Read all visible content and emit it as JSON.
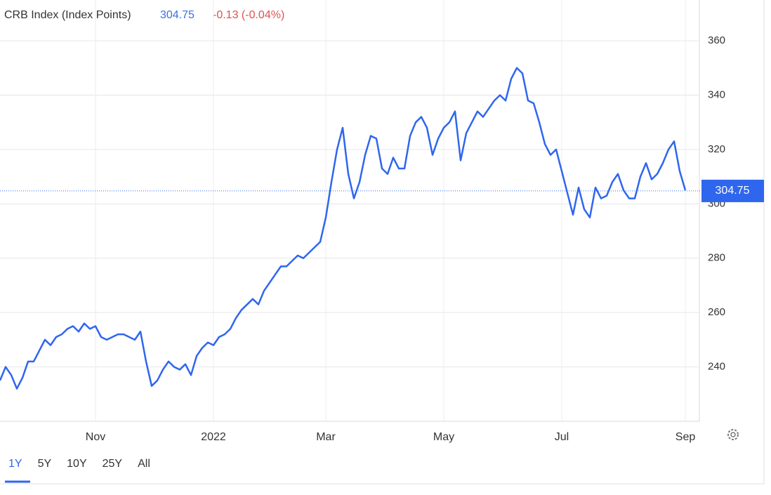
{
  "chart_data": {
    "type": "line",
    "title": "CRB Index (Index Points)",
    "last_value": 304.75,
    "change_label": "-0.13 (-0.04%)",
    "color": "#2f66ee",
    "values": [
      235,
      240,
      237,
      232,
      236,
      242,
      242,
      246,
      250,
      248,
      251,
      252,
      254,
      255,
      253,
      256,
      254,
      255,
      251,
      250,
      251,
      252,
      252,
      251,
      250,
      253,
      242,
      233,
      235,
      239,
      242,
      240,
      239,
      241,
      237,
      244,
      247,
      249,
      248,
      251,
      252,
      254,
      258,
      261,
      263,
      265,
      263,
      268,
      271,
      274,
      277,
      277,
      279,
      281,
      280,
      282,
      284,
      286,
      295,
      308,
      320,
      328,
      311,
      302,
      308,
      318,
      325,
      324,
      313,
      311,
      317,
      313,
      313,
      325,
      330,
      332,
      328,
      318,
      324,
      328,
      330,
      334,
      316,
      326,
      330,
      334,
      332,
      335,
      338,
      340,
      338,
      346,
      350,
      348,
      338,
      337,
      330,
      322,
      318,
      320,
      312,
      304,
      296,
      306,
      298,
      295,
      306,
      302,
      303,
      308,
      311,
      305,
      302,
      302,
      310,
      315,
      309,
      311,
      315,
      320,
      323,
      312,
      305
    ],
    "categories": [
      null,
      null,
      null,
      null,
      null,
      null,
      null,
      null,
      null,
      null,
      null,
      null,
      null,
      null,
      null,
      null,
      null,
      "Nov",
      null,
      null,
      null,
      null,
      null,
      null,
      null,
      null,
      null,
      null,
      null,
      null,
      null,
      null,
      null,
      null,
      null,
      null,
      null,
      null,
      "2022",
      null,
      null,
      null,
      null,
      null,
      null,
      null,
      null,
      null,
      null,
      null,
      null,
      null,
      null,
      null,
      null,
      null,
      null,
      null,
      "Mar",
      null,
      null,
      null,
      null,
      null,
      null,
      null,
      null,
      null,
      null,
      null,
      null,
      null,
      null,
      null,
      null,
      null,
      null,
      null,
      null,
      "May",
      null,
      null,
      null,
      null,
      null,
      null,
      null,
      null,
      null,
      null,
      null,
      null,
      null,
      null,
      null,
      null,
      null,
      null,
      null,
      null,
      "Jul",
      null,
      null,
      null,
      null,
      null,
      null,
      null,
      null,
      null,
      null,
      null,
      null,
      null,
      null,
      null,
      null,
      null,
      null,
      null,
      null,
      null,
      "Sep"
    ],
    "ylim": [
      220,
      375
    ],
    "yticks": [
      240,
      260,
      280,
      300,
      320,
      340,
      360
    ],
    "grid": true,
    "range_buttons": [
      "1Y",
      "5Y",
      "10Y",
      "25Y",
      "All"
    ]
  }
}
